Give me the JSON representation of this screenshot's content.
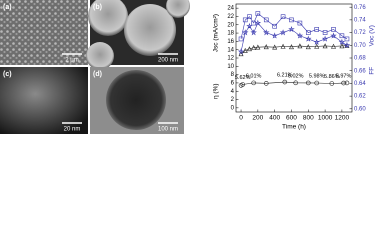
{
  "panels": [
    {
      "label": "(a)",
      "scale": "2 μm"
    },
    {
      "label": "(b)",
      "scale": "200 nm"
    },
    {
      "label": "(c)",
      "scale": "20 nm"
    },
    {
      "label": "(d)",
      "scale": "100 nm"
    }
  ],
  "chart_data": {
    "type": "line",
    "xlabel": "Time (h)",
    "ylabel_upper": "Jsc (mA/cm²)",
    "ylabel_lower": "η (%)",
    "y2label_upper": "Voc (V)",
    "y2label_lower": "FF",
    "xlim": [
      -60,
      1320
    ],
    "xticks": [
      0,
      200,
      400,
      600,
      800,
      1000,
      1200
    ],
    "ylim": [
      -1,
      25
    ],
    "yticks": [
      0,
      2,
      4,
      6,
      8,
      10,
      12,
      14,
      16,
      18,
      20,
      22,
      24
    ],
    "y2lim": [
      0.595,
      0.765
    ],
    "y2ticks": [
      {
        "value": 0.6,
        "label": "0.60"
      },
      0.62,
      0.64,
      0.66,
      0.68,
      {
        "value": 0.7,
        "label": "0.70"
      },
      0.72,
      0.74,
      0.76
    ],
    "series": [
      {
        "name": "Jsc",
        "color": "#222222",
        "marker": "triangle",
        "x": [
          0,
          50,
          100,
          150,
          200,
          300,
          400,
          500,
          600,
          700,
          800,
          900,
          1000,
          1100,
          1200,
          1260
        ],
        "values": [
          13.0,
          13.8,
          14.2,
          14.5,
          14.6,
          14.7,
          14.6,
          14.8,
          14.7,
          14.9,
          14.7,
          14.8,
          14.9,
          14.8,
          14.9,
          15.0
        ]
      },
      {
        "name": "η",
        "color": "#222222",
        "marker": "circle",
        "x": [
          0,
          20,
          150,
          300,
          520,
          650,
          800,
          900,
          1080,
          1220,
          1260
        ],
        "values": [
          5.4,
          5.62,
          6.01,
          5.9,
          6.21,
          6.02,
          6.0,
          5.98,
          5.86,
          5.97,
          6.0
        ],
        "value_labels": [
          null,
          "5.62%",
          "6.01%",
          null,
          "6.21%",
          "6.02%",
          null,
          "5.98%",
          "5.86%",
          "5.97%",
          null
        ]
      },
      {
        "name": "Voc",
        "color": "#3a3ab0",
        "marker": "square",
        "axis": "y2",
        "x": [
          0,
          50,
          100,
          150,
          200,
          300,
          400,
          500,
          600,
          700,
          800,
          900,
          1000,
          1100,
          1200,
          1260
        ],
        "values": [
          0.71,
          0.74,
          0.745,
          0.735,
          0.75,
          0.74,
          0.73,
          0.745,
          0.74,
          0.735,
          0.72,
          0.725,
          0.72,
          0.725,
          0.715,
          0.71
        ]
      },
      {
        "name": "FF",
        "color": "#3a3ab0",
        "marker": "star",
        "axis": "y2",
        "x": [
          0,
          50,
          100,
          150,
          200,
          300,
          400,
          500,
          600,
          700,
          800,
          900,
          1000,
          1100,
          1200,
          1260
        ],
        "values": [
          0.69,
          0.72,
          0.73,
          0.72,
          0.735,
          0.72,
          0.715,
          0.72,
          0.725,
          0.715,
          0.71,
          0.705,
          0.71,
          0.715,
          0.705,
          0.7
        ]
      }
    ]
  }
}
